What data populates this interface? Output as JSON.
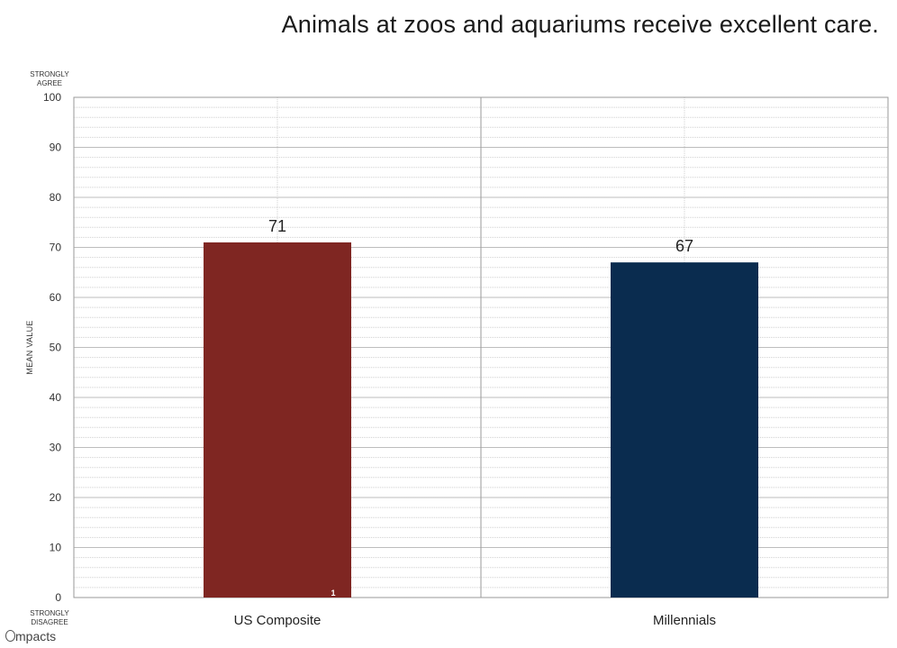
{
  "chart_data": {
    "type": "bar",
    "title": "Animals at zoos and aquariums receive excellent care.",
    "categories": [
      "US Composite",
      "Millennials"
    ],
    "values": [
      71,
      67
    ],
    "colors": [
      "#7f2622",
      "#0a2c4f"
    ],
    "ylabel": "MEAN VALUE",
    "ylim": [
      0,
      100
    ],
    "yticks": [
      0,
      10,
      20,
      30,
      40,
      50,
      60,
      70,
      80,
      90,
      100
    ],
    "top_anchor": "STRONGLY AGREE",
    "bottom_anchor": "STRONGLY DISAGREE",
    "footnote_marker": "1",
    "grid": true
  },
  "brand": {
    "logo_text": "mpacts"
  }
}
